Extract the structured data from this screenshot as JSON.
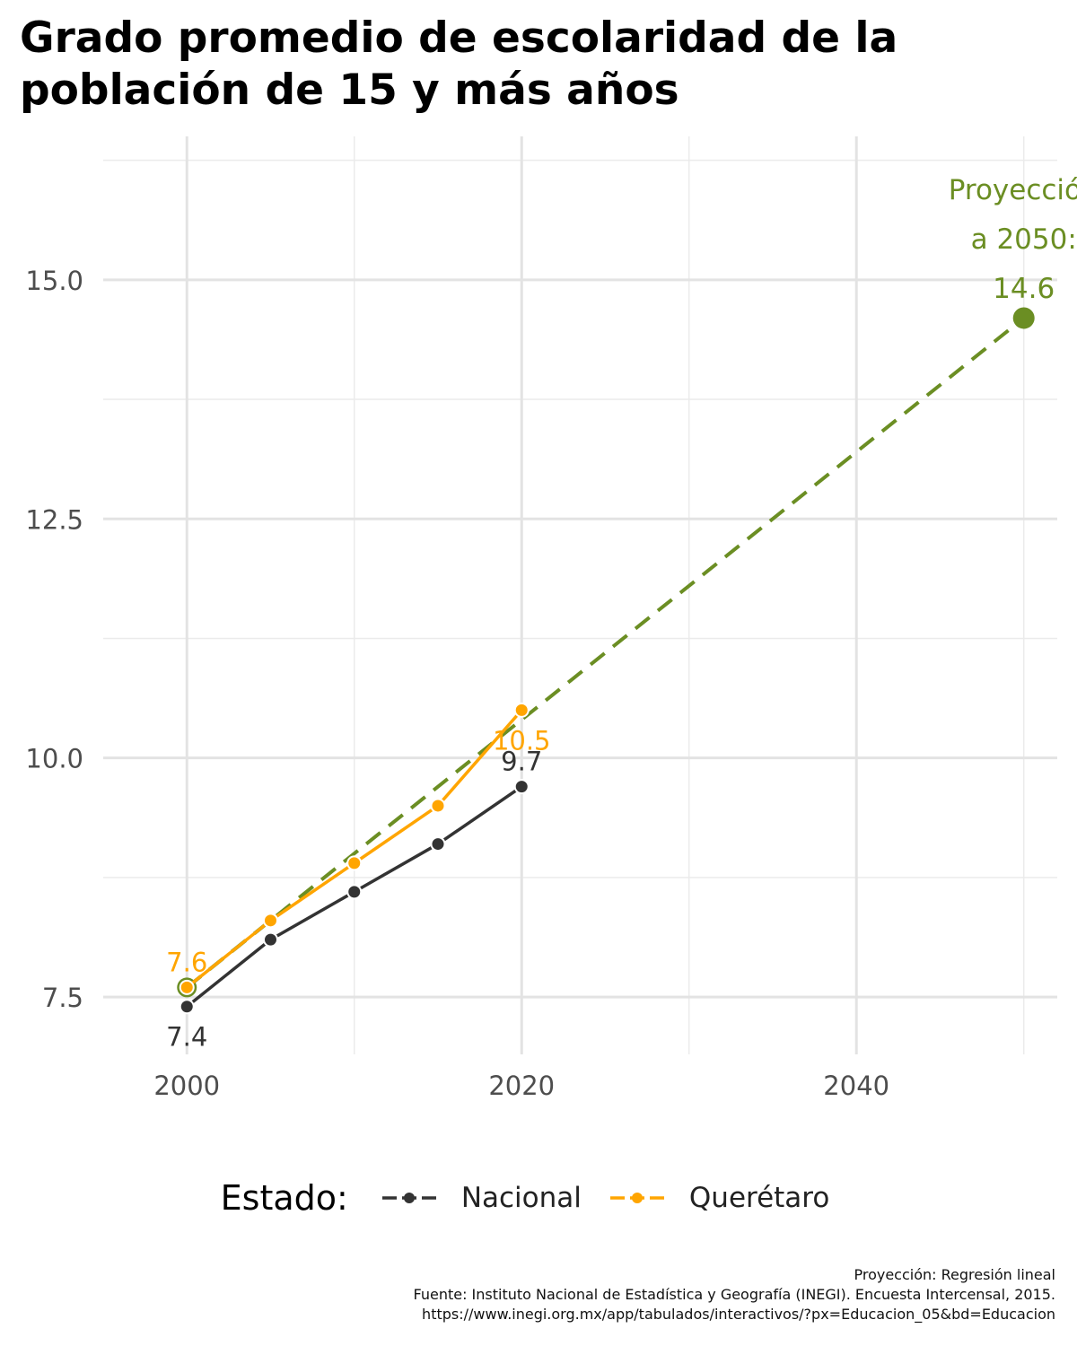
{
  "chart_data": {
    "type": "line",
    "title": "Grado promedio de escolaridad de la población de 15 y más años",
    "x_ticks": [
      2000,
      2020,
      2040
    ],
    "y_ticks": [
      7.5,
      10.0,
      12.5,
      15.0
    ],
    "y_tick_labels": [
      "7.5",
      "10.0",
      "12.5",
      "15.0"
    ],
    "xlim": [
      1995,
      2052
    ],
    "ylim": [
      6.9,
      16.5
    ],
    "grid": true,
    "legend_position": "bottom",
    "legend_title": "Estado:",
    "series": [
      {
        "name": "Nacional",
        "color": "#333333",
        "x": [
          2000,
          2005,
          2010,
          2015,
          2020
        ],
        "y": [
          7.4,
          8.1,
          8.6,
          9.1,
          9.7
        ],
        "point_labels": [
          {
            "x": 2000,
            "y": 7.4,
            "text": "7.4",
            "position": "below"
          },
          {
            "x": 2020,
            "y": 9.7,
            "text": "9.7",
            "position": "above"
          }
        ]
      },
      {
        "name": "Querétaro",
        "color": "#FFA500",
        "x": [
          2000,
          2005,
          2010,
          2015,
          2020
        ],
        "y": [
          7.6,
          8.3,
          8.9,
          9.5,
          10.5
        ],
        "point_labels": [
          {
            "x": 2000,
            "y": 7.6,
            "text": "7.6",
            "position": "above"
          },
          {
            "x": 2020,
            "y": 10.5,
            "text": "10.5",
            "position": "below"
          }
        ]
      }
    ],
    "projection": {
      "color": "#6B8E23",
      "style": "dashed",
      "x": [
        2000,
        2050
      ],
      "y": [
        7.6,
        14.6
      ],
      "annotation_lines": [
        "Proyección",
        "a 2050:",
        "14.6"
      ]
    }
  },
  "caption": {
    "line1": "Proyección: Regresión lineal",
    "line2": "Fuente: Instituto Nacional de Estadística y Geografía (INEGI). Encuesta Intercensal, 2015.",
    "line3": "https://www.inegi.org.mx/app/tabulados/interactivos/?px=Educacion_05&bd=Educacion"
  }
}
